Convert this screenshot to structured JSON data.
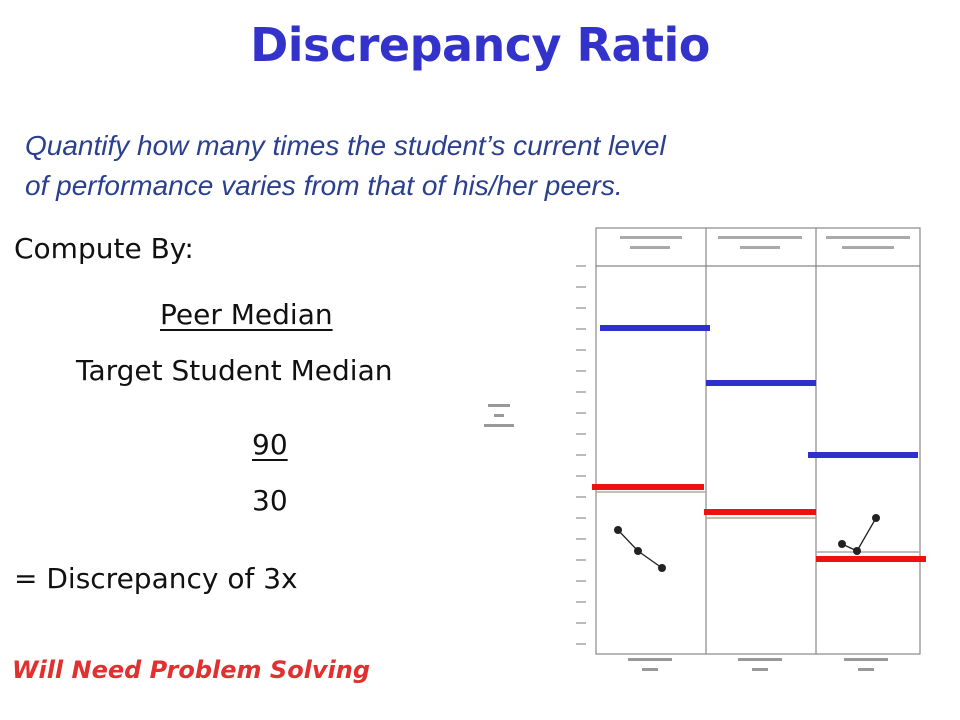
{
  "title": "Discrepancy Ratio",
  "subtitle": {
    "line1": "Quantify how many times the student’s current level",
    "line2": "of performance varies from that of his/her peers."
  },
  "compute_label": "Compute By:",
  "fraction": {
    "numerator": "Peer Median",
    "denominator": "Target Student Median"
  },
  "example": {
    "numerator": "90",
    "denominator": "30"
  },
  "result": "= Discrepancy of 3x",
  "warning": "Will Need Problem Solving",
  "colors": {
    "title": "#3333cc",
    "subtitle": "#2b3f8f",
    "warning": "#e03030",
    "peer_line": "#2f2fd0",
    "student_line": "#ee1111"
  }
}
